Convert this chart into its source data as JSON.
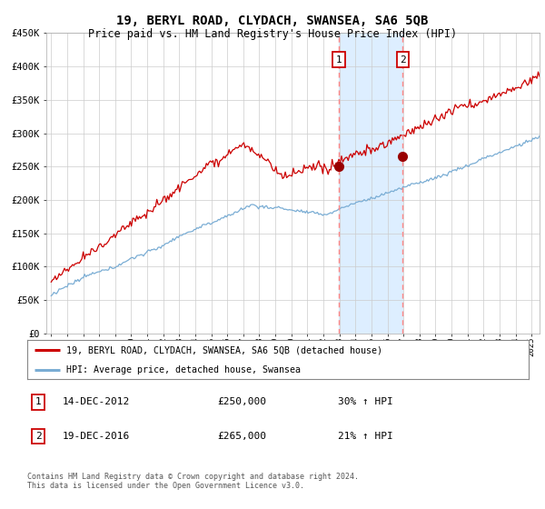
{
  "title": "19, BERYL ROAD, CLYDACH, SWANSEA, SA6 5QB",
  "subtitle": "Price paid vs. HM Land Registry's House Price Index (HPI)",
  "title_fontsize": 10,
  "subtitle_fontsize": 8.5,
  "ylim": [
    0,
    450000
  ],
  "yticks": [
    0,
    50000,
    100000,
    150000,
    200000,
    250000,
    300000,
    350000,
    400000,
    450000
  ],
  "ytick_labels": [
    "£0",
    "£50K",
    "£100K",
    "£150K",
    "£200K",
    "£250K",
    "£300K",
    "£350K",
    "£400K",
    "£450K"
  ],
  "xlim_start": 1994.7,
  "xlim_end": 2025.5,
  "sale1_x": 2012.96,
  "sale1_y": 250000,
  "sale1_label": "14-DEC-2012",
  "sale1_price": "£250,000",
  "sale1_hpi": "30% ↑ HPI",
  "sale2_x": 2016.96,
  "sale2_y": 265000,
  "sale2_label": "19-DEC-2016",
  "sale2_price": "£265,000",
  "sale2_hpi": "21% ↑ HPI",
  "red_line_color": "#cc0000",
  "blue_line_color": "#7aadd4",
  "shade_color": "#ddeeff",
  "dashed_color": "#ff8888",
  "legend_line1": "19, BERYL ROAD, CLYDACH, SWANSEA, SA6 5QB (detached house)",
  "legend_line2": "HPI: Average price, detached house, Swansea",
  "footer": "Contains HM Land Registry data © Crown copyright and database right 2024.\nThis data is licensed under the Open Government Licence v3.0.",
  "background_color": "#ffffff",
  "grid_color": "#cccccc"
}
